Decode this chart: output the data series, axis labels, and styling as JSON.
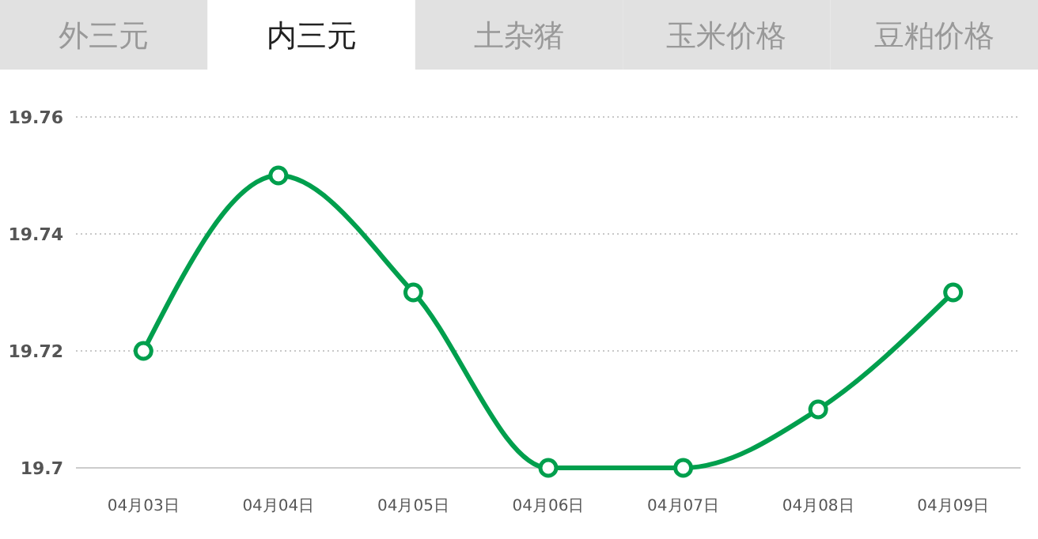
{
  "chart_data": {
    "type": "line",
    "title": "内三元",
    "annotations": [
      "外三元",
      "土杂猪",
      "玉米价格",
      "豆粕价格"
    ],
    "categories": [
      "04月03日",
      "04月04日",
      "04月05日",
      "04月06日",
      "04月07日",
      "04月08日",
      "04月09日"
    ],
    "series": [
      {
        "color": "#009f4d",
        "values": [
          19.72,
          19.75,
          19.73,
          19.7,
          19.7,
          19.71,
          19.73
        ]
      }
    ],
    "ylim": [
      19.7,
      19.76
    ],
    "yticks": [
      19.7,
      19.72,
      19.74,
      19.76
    ],
    "grid": "y",
    "marker": "circle",
    "line_style": "solid"
  }
}
